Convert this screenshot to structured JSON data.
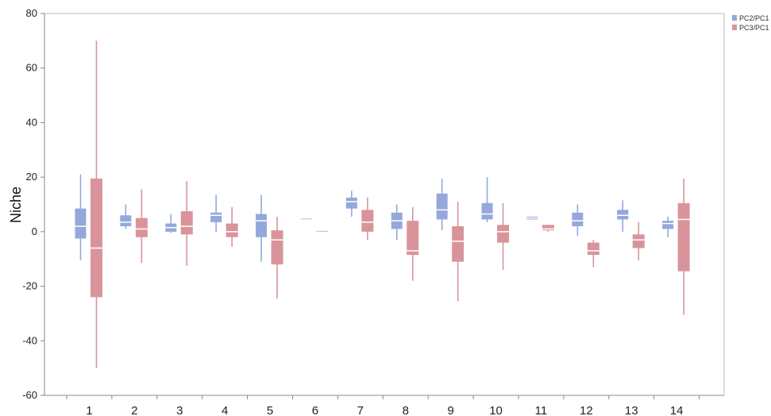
{
  "chart_data": {
    "type": "boxplot",
    "title": "",
    "xlabel": "",
    "ylabel": "Niche",
    "ylim": [
      -60,
      80
    ],
    "yticks": [
      -60,
      -40,
      -20,
      0,
      20,
      40,
      60,
      80
    ],
    "categories": [
      "1",
      "2",
      "3",
      "4",
      "5",
      "6",
      "7",
      "8",
      "9",
      "10",
      "11",
      "12",
      "13",
      "14"
    ],
    "grid": false,
    "legend_position": "top-right",
    "series": [
      {
        "name": "PC2/PC1",
        "color": "#94a8dc",
        "boxes": [
          {
            "min": -10.5,
            "q1": -2.5,
            "median": 2,
            "q3": 8.5,
            "max": 21
          },
          {
            "min": 1,
            "q1": 2,
            "median": 3.5,
            "q3": 6,
            "max": 10
          },
          {
            "min": -0.5,
            "q1": 0,
            "median": 1.5,
            "q3": 3,
            "max": 6.5
          },
          {
            "min": 0,
            "q1": 3.5,
            "median": 6,
            "q3": 7,
            "max": 13.5
          },
          {
            "min": -11,
            "q1": -2,
            "median": 4,
            "q3": 6.5,
            "max": 13.5
          },
          {
            "min": 5,
            "q1": 5,
            "median": 5,
            "q3": 5,
            "max": 5
          },
          {
            "min": 5.5,
            "q1": 8.5,
            "median": 11,
            "q3": 12.5,
            "max": 15
          },
          {
            "min": -3,
            "q1": 1,
            "median": 4,
            "q3": 7,
            "max": 10
          },
          {
            "min": 0.5,
            "q1": 4.5,
            "median": 8,
            "q3": 14,
            "max": 19.5
          },
          {
            "min": 3.5,
            "q1": 4.5,
            "median": 6.5,
            "q3": 10.5,
            "max": 20
          },
          {
            "min": 4.5,
            "q1": 4.5,
            "median": 5,
            "q3": 5.5,
            "max": 5.5
          },
          {
            "min": -1.5,
            "q1": 2,
            "median": 4,
            "q3": 7,
            "max": 10
          },
          {
            "min": 0,
            "q1": 4.5,
            "median": 6,
            "q3": 8,
            "max": 11.5
          },
          {
            "min": -2,
            "q1": 1,
            "median": 3,
            "q3": 4,
            "max": 5.5
          }
        ]
      },
      {
        "name": "PC3/PC1",
        "color": "#d9949b",
        "boxes": [
          {
            "min": -50,
            "q1": -24,
            "median": -6,
            "q3": 19.5,
            "max": 70
          },
          {
            "min": -11.5,
            "q1": -2,
            "median": 1,
            "q3": 5,
            "max": 15.5
          },
          {
            "min": -12.5,
            "q1": -1,
            "median": 2,
            "q3": 7.5,
            "max": 18.5
          },
          {
            "min": -5.5,
            "q1": -2,
            "median": 0,
            "q3": 3,
            "max": 9
          },
          {
            "min": -24.5,
            "q1": -12,
            "median": -3,
            "q3": 0.5,
            "max": 5.5
          },
          {
            "min": 0.5,
            "q1": 0.5,
            "median": 0.5,
            "q3": 0.5,
            "max": 0.5
          },
          {
            "min": -3,
            "q1": 0,
            "median": 3.5,
            "q3": 8,
            "max": 12.5
          },
          {
            "min": -18,
            "q1": -8.5,
            "median": -7,
            "q3": 4,
            "max": 9
          },
          {
            "min": -25.5,
            "q1": -11,
            "median": -3.5,
            "q3": 2,
            "max": 11
          },
          {
            "min": -14,
            "q1": -4,
            "median": 0,
            "q3": 2.5,
            "max": 10.5
          },
          {
            "min": 0,
            "q1": 0.5,
            "median": 1,
            "q3": 2.5,
            "max": 2.5
          },
          {
            "min": -13,
            "q1": -8.5,
            "median": -7,
            "q3": -4,
            "max": -3
          },
          {
            "min": -10.5,
            "q1": -6,
            "median": -3,
            "q3": -1,
            "max": 3.5
          },
          {
            "min": -30.5,
            "q1": -14.5,
            "median": 4.5,
            "q3": 10.5,
            "max": 19.5
          }
        ]
      }
    ]
  }
}
